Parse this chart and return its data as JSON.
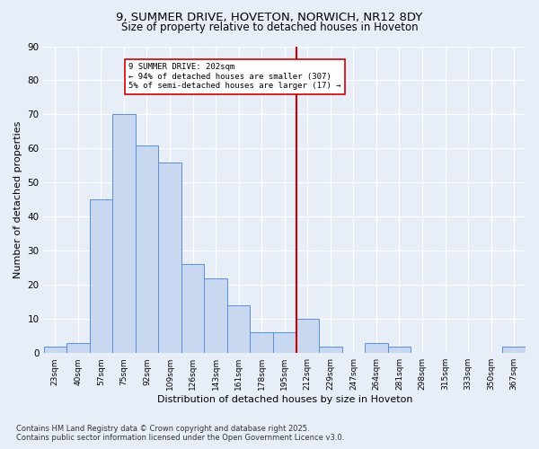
{
  "title_line1": "9, SUMMER DRIVE, HOVETON, NORWICH, NR12 8DY",
  "title_line2": "Size of property relative to detached houses in Hoveton",
  "xlabel": "Distribution of detached houses by size in Hoveton",
  "ylabel": "Number of detached properties",
  "categories": [
    "23sqm",
    "40sqm",
    "57sqm",
    "75sqm",
    "92sqm",
    "109sqm",
    "126sqm",
    "143sqm",
    "161sqm",
    "178sqm",
    "195sqm",
    "212sqm",
    "229sqm",
    "247sqm",
    "264sqm",
    "281sqm",
    "298sqm",
    "315sqm",
    "333sqm",
    "350sqm",
    "367sqm"
  ],
  "values": [
    2,
    3,
    45,
    70,
    61,
    56,
    26,
    22,
    14,
    6,
    6,
    10,
    2,
    0,
    3,
    2,
    0,
    0,
    0,
    0,
    2
  ],
  "bar_color": "#c8d8f0",
  "bar_edge_color": "#5b8dd9",
  "vline_x": 10.5,
  "vline_color": "#cc0000",
  "annotation_text": "9 SUMMER DRIVE: 202sqm\n← 94% of detached houses are smaller (307)\n5% of semi-detached houses are larger (17) →",
  "annotation_box_color": "#ffffff",
  "annotation_box_edge": "#cc0000",
  "ylim": [
    0,
    90
  ],
  "yticks": [
    0,
    10,
    20,
    30,
    40,
    50,
    60,
    70,
    80,
    90
  ],
  "background_color": "#e8eef8",
  "grid_color": "#ffffff",
  "footer": "Contains HM Land Registry data © Crown copyright and database right 2025.\nContains public sector information licensed under the Open Government Licence v3.0."
}
